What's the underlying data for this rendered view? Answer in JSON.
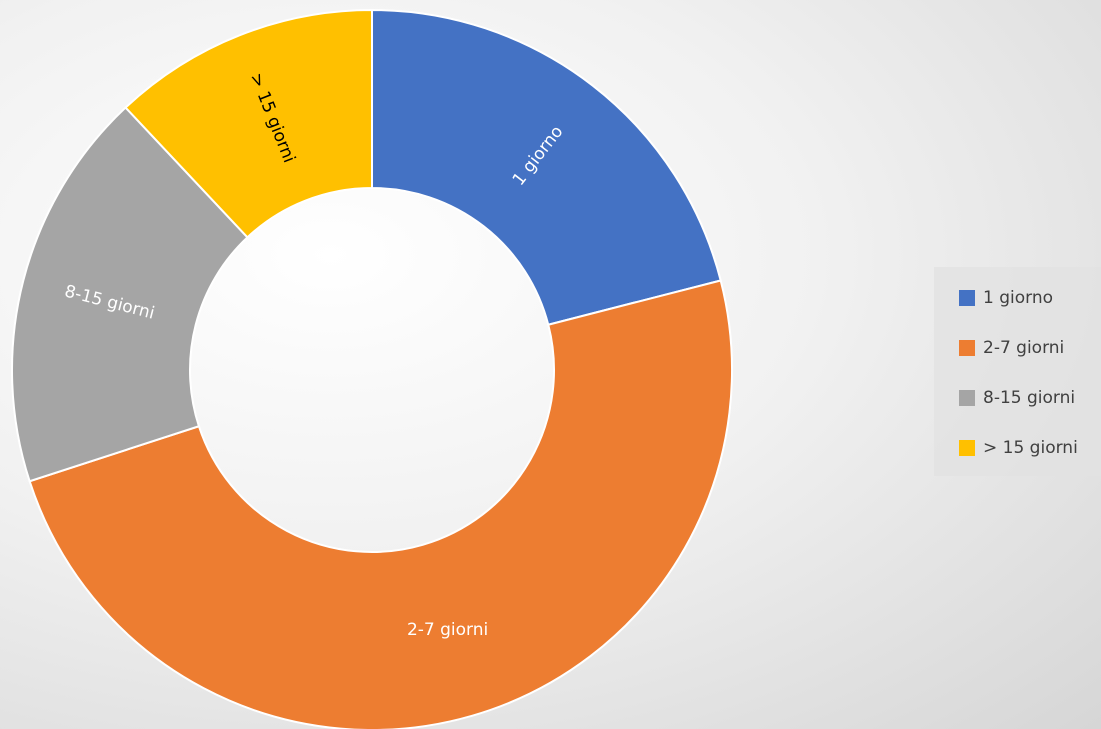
{
  "chart_data": {
    "type": "pie",
    "subtype": "doughnut",
    "categories": [
      "1 giorno",
      "2-7 giorni",
      "8-15 giorni",
      "> 15 giorni"
    ],
    "values": [
      21,
      49,
      18,
      12
    ],
    "unit": "%",
    "colors": [
      "#4472C4",
      "#ED7D31",
      "#A5A5A5",
      "#FFC000"
    ],
    "label_colors": [
      "#FFFFFF",
      "#FFFFFF",
      "#FFFFFF",
      "#000000"
    ],
    "data_labels": [
      "1 giorno",
      "2-7 giorni",
      "8-15 giorni",
      "> 15 giorni"
    ],
    "start_angle_deg": 0,
    "direction": "clockwise",
    "legend_position": "right",
    "title": ""
  }
}
